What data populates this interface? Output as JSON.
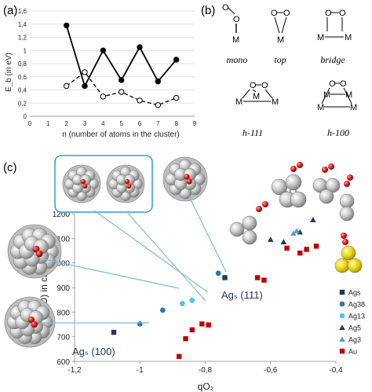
{
  "panel_a": {
    "label": "(a)",
    "ylabel": "E_b (in eV)",
    "xlabel": "n (number of atoms in the cluster)",
    "chart_data": {
      "type": "line",
      "x": [
        2,
        3,
        4,
        5,
        6,
        7,
        8
      ],
      "xlim": [
        0,
        9
      ],
      "ylim": [
        0,
        1.6
      ],
      "xticks": [
        "0",
        "1",
        "2",
        "3",
        "4",
        "5",
        "6",
        "7",
        "8",
        "9"
      ],
      "yticks": [
        "0",
        "0,2",
        "0,4",
        "0,6",
        "0,8",
        "1",
        "1,2",
        "1,4",
        "1,6"
      ],
      "series": [
        {
          "style": "solid",
          "marker": "filled-circle",
          "values": [
            1.38,
            0.46,
            1.0,
            0.55,
            1.05,
            0.53,
            0.86
          ]
        },
        {
          "style": "dashed",
          "marker": "open-circle",
          "values": [
            0.46,
            0.67,
            0.3,
            0.37,
            0.24,
            0.17,
            0.28
          ]
        }
      ]
    }
  },
  "panel_b": {
    "label": "(b)",
    "structures": [
      {
        "name": "mono",
        "atoms": [
          "O",
          "O",
          "M"
        ]
      },
      {
        "name": "top",
        "atoms": [
          "O",
          "O",
          "M"
        ]
      },
      {
        "name": "bridge",
        "atoms": [
          "O",
          "O",
          "M",
          "M"
        ]
      },
      {
        "name": "h-111",
        "atoms": [
          "O",
          "O",
          "M",
          "M",
          "M"
        ]
      },
      {
        "name": "h-100",
        "atoms": [
          "O",
          "O",
          "M",
          "M",
          "M",
          "M"
        ]
      }
    ]
  },
  "panel_c": {
    "label": "(c)",
    "ylabel": "ν(OO) in cm⁻¹",
    "xlabel": "qO₂",
    "annotations": [
      "Agₛ (111)",
      "Agₛ (100)"
    ],
    "chart_data": {
      "type": "scatter",
      "xlim": [
        -1.2,
        -0.4
      ],
      "ylim": [
        600,
        1200
      ],
      "xticks": [
        "-1,2",
        "-1",
        "-0,8",
        "-0,6",
        "-0,4"
      ],
      "yticks": [
        "600",
        "700",
        "800",
        "900",
        "1000",
        "1100",
        "1200"
      ],
      "series": [
        {
          "name": "Ags",
          "color": "#1f3864",
          "marker": "square",
          "points": [
            [
              -1.08,
              718
            ],
            [
              -0.74,
              940
            ]
          ]
        },
        {
          "name": "Ag38",
          "color": "#2e75b6",
          "marker": "circle",
          "points": [
            [
              -1.0,
              752
            ],
            [
              -0.93,
              808
            ],
            [
              -0.76,
              958
            ]
          ]
        },
        {
          "name": "Ag13",
          "color": "#4fc3f7",
          "marker": "circle",
          "points": [
            [
              -0.87,
              835
            ],
            [
              -0.84,
              848
            ]
          ]
        },
        {
          "name": "Ag5",
          "color": "#203864",
          "marker": "triangle",
          "points": [
            [
              -0.6,
              1095
            ],
            [
              -0.56,
              1085
            ],
            [
              -0.51,
              1125
            ],
            [
              -0.47,
              1175
            ]
          ]
        },
        {
          "name": "Ag3",
          "color": "#5b9bd5",
          "marker": "triangle",
          "points": [
            [
              -0.53,
              1120
            ],
            [
              -0.52,
              1130
            ]
          ]
        },
        {
          "name": "Au",
          "color": "#c00000",
          "marker": "square",
          "points": [
            [
              -0.88,
              620
            ],
            [
              -0.86,
              692
            ],
            [
              -0.84,
              728
            ],
            [
              -0.81,
              752
            ],
            [
              -0.79,
              748
            ],
            [
              -0.64,
              940
            ],
            [
              -0.62,
              930
            ],
            [
              -0.55,
              1060
            ],
            [
              -0.51,
              1040
            ],
            [
              -0.49,
              1055
            ],
            [
              -0.46,
              1068
            ]
          ]
        }
      ]
    }
  },
  "atom_label_O": "O",
  "atom_label_M": "M"
}
